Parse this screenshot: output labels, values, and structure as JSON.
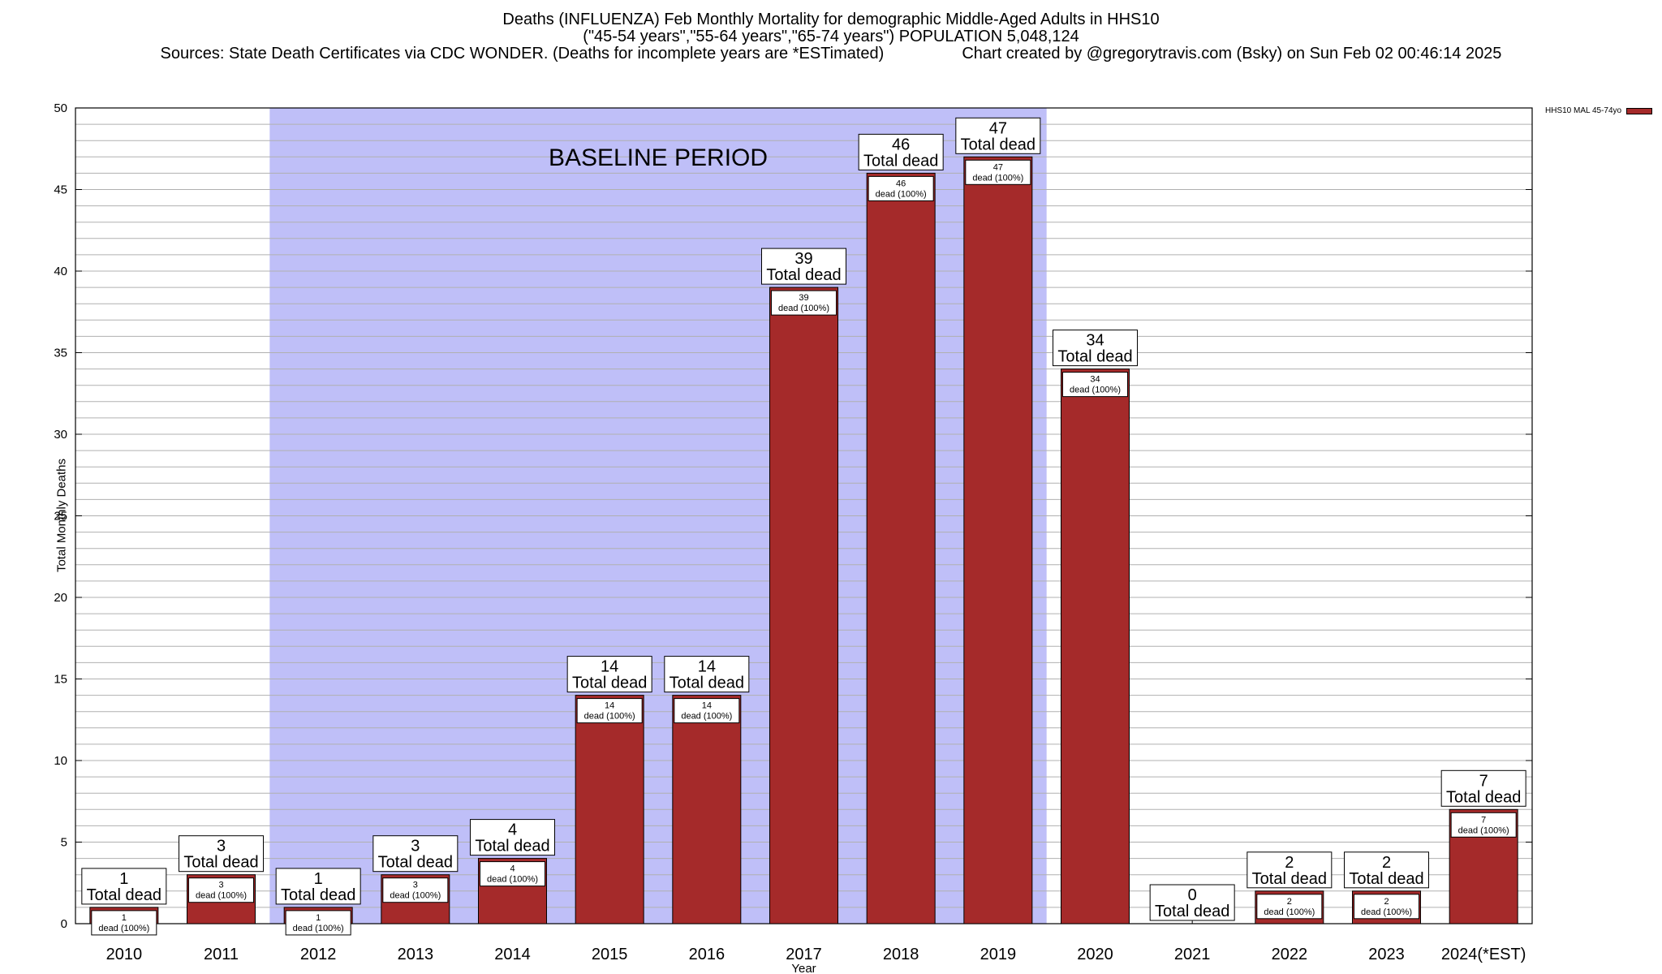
{
  "chart_data": {
    "type": "bar",
    "title": "Deaths (INFLUENZA) Feb Monthly Mortality for demographic Middle-Aged Adults in HHS10",
    "subtitle": "(\"45-54 years\",\"55-64 years\",\"65-74 years\") POPULATION 5,048,124",
    "source_line": "Sources: State Death Certificates via CDC WONDER. (Deaths for incomplete years are *ESTimated)",
    "credit_line": "Chart created by @gregorytravis.com (Bsky) on Sun Feb 02 00:46:14 2025",
    "xlabel": "Year",
    "ylabel": "Total Monthly Deaths",
    "ylim": [
      0,
      50
    ],
    "y_ticks": [
      "0",
      "5",
      "10",
      "15",
      "20",
      "25",
      "30",
      "35",
      "40",
      "45",
      "50"
    ],
    "categories": [
      "2010",
      "2011",
      "2012",
      "2013",
      "2014",
      "2015",
      "2016",
      "2017",
      "2018",
      "2019",
      "2020",
      "2021",
      "2022",
      "2023",
      "2024(*EST)"
    ],
    "series": [
      {
        "name": "HHS10 MAL 45-74yo",
        "values": [
          1,
          3,
          1,
          3,
          4,
          14,
          14,
          39,
          46,
          47,
          34,
          0,
          2,
          2,
          7
        ]
      }
    ],
    "total_label": "Total dead",
    "inner_label": "dead (100%)",
    "baseline_label": "BASELINE PERIOD",
    "baseline_range": [
      "2012",
      "2019"
    ],
    "colors": {
      "bar": "#a52a2a",
      "baseline_band": "#bfbff8",
      "grid": "#b0b0b0"
    },
    "grid": true,
    "legend_position": "top-right"
  }
}
